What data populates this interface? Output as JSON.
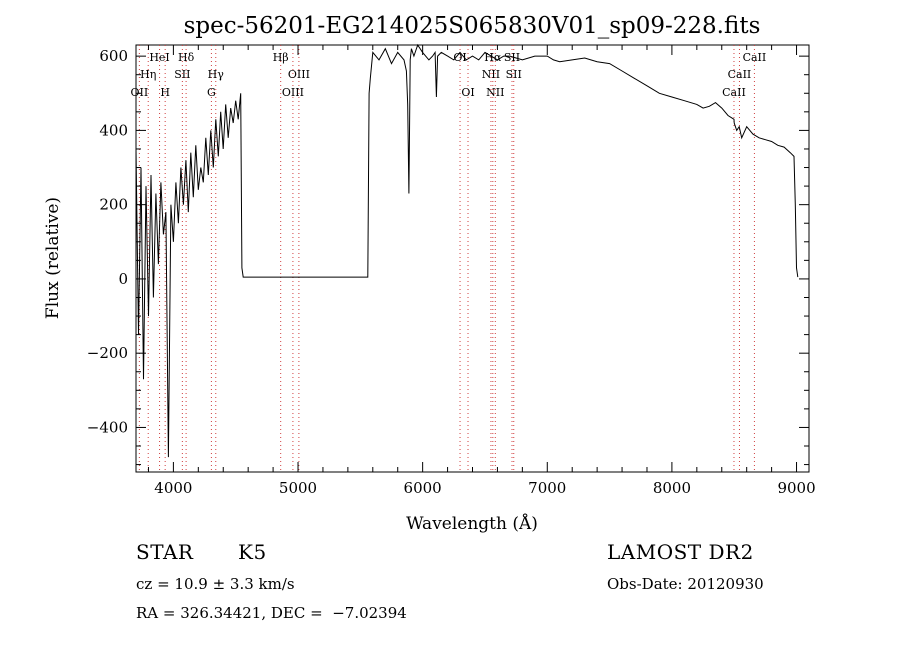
{
  "chart_data": {
    "type": "line",
    "title": "spec-56201-EG214025S065830V01_sp09-228.fits",
    "xlabel": "Wavelength (Å)",
    "ylabel": "Flux (relative)",
    "xlim": [
      3700,
      9100
    ],
    "ylim": [
      -520,
      630
    ],
    "x_ticks": [
      4000,
      5000,
      6000,
      7000,
      8000,
      9000
    ],
    "x_tick_labels": [
      "4000",
      "5000",
      "6000",
      "7000",
      "8000",
      "9000"
    ],
    "y_ticks": [
      -400,
      -200,
      0,
      200,
      400,
      600
    ],
    "y_tick_labels": [
      "−400",
      "−200",
      "0",
      "200",
      "400",
      "600"
    ],
    "grid": false,
    "series": [
      {
        "x": [
          3700,
          3720,
          3740,
          3760,
          3780,
          3800,
          3820,
          3840,
          3860,
          3880,
          3900,
          3920,
          3940,
          3960,
          3980,
          4000,
          4020,
          4040,
          4060,
          4080,
          4100,
          4120,
          4140,
          4160,
          4180,
          4200,
          4220,
          4240,
          4260,
          4280,
          4300,
          4320,
          4340,
          4360,
          4380,
          4400,
          4420,
          4440,
          4460,
          4480,
          4500,
          4520,
          4540,
          4550,
          4560,
          4580,
          4800,
          5000,
          5200,
          5400,
          5560,
          5570,
          5580,
          5600,
          5650,
          5700,
          5750,
          5800,
          5850,
          5870,
          5880,
          5890,
          5895,
          5900,
          5910,
          5930,
          5960,
          6000,
          6050,
          6080,
          6100,
          6110,
          6120,
          6150,
          6200,
          6250,
          6300,
          6350,
          6400,
          6450,
          6500,
          6550,
          6600,
          6650,
          6700,
          6750,
          6800,
          6900,
          7000,
          7050,
          7100,
          7200,
          7300,
          7400,
          7500,
          7600,
          7700,
          7800,
          7900,
          8000,
          8100,
          8200,
          8250,
          8300,
          8350,
          8400,
          8450,
          8498,
          8500,
          8520,
          8540,
          8560,
          8600,
          8650,
          8700,
          8750,
          8800,
          8850,
          8900,
          8950,
          8980,
          8990,
          9000,
          9010
        ],
        "y": [
          350,
          -150,
          300,
          -270,
          250,
          -100,
          280,
          -50,
          230,
          40,
          260,
          120,
          180,
          -480,
          200,
          100,
          260,
          150,
          300,
          200,
          320,
          180,
          340,
          220,
          360,
          240,
          300,
          260,
          380,
          280,
          400,
          300,
          430,
          330,
          450,
          350,
          470,
          380,
          460,
          420,
          480,
          430,
          500,
          30,
          5,
          5,
          5,
          5,
          5,
          5,
          5,
          500,
          540,
          610,
          590,
          620,
          580,
          610,
          590,
          560,
          470,
          230,
          420,
          590,
          620,
          600,
          630,
          610,
          590,
          600,
          610,
          490,
          600,
          610,
          600,
          590,
          610,
          590,
          600,
          590,
          610,
          600,
          590,
          600,
          600,
          595,
          590,
          600,
          600,
          590,
          585,
          590,
          595,
          585,
          580,
          560,
          540,
          520,
          500,
          490,
          480,
          470,
          460,
          465,
          475,
          460,
          440,
          430,
          420,
          400,
          410,
          380,
          410,
          390,
          380,
          375,
          370,
          360,
          355,
          340,
          330,
          200,
          30,
          5
        ]
      }
    ],
    "lines": [
      {
        "wavelength": 3727,
        "label": "OII",
        "row": 3
      },
      {
        "wavelength": 3798,
        "label": "Hη",
        "row": 2
      },
      {
        "wavelength": 3889,
        "label": "HeI",
        "row": 1
      },
      {
        "wavelength": 3934,
        "label": "H",
        "row": 3
      },
      {
        "wavelength": 4072,
        "label": "SII",
        "row": 2
      },
      {
        "wavelength": 4102,
        "label": "Hδ",
        "row": 1
      },
      {
        "wavelength": 4305,
        "label": "G",
        "row": 3
      },
      {
        "wavelength": 4340,
        "label": "Hγ",
        "row": 2
      },
      {
        "wavelength": 4861,
        "label": "Hβ",
        "row": 1
      },
      {
        "wavelength": 4959,
        "label": "OIII",
        "row": 3
      },
      {
        "wavelength": 5007,
        "label": "OIII",
        "row": 2
      },
      {
        "wavelength": 6300,
        "label": "OI",
        "row": 1
      },
      {
        "wavelength": 6364,
        "label": "OI",
        "row": 3
      },
      {
        "wavelength": 6548,
        "label": "NII",
        "row": 2
      },
      {
        "wavelength": 6563,
        "label": "Hα",
        "row": 1
      },
      {
        "wavelength": 6583,
        "label": "NII",
        "row": 3
      },
      {
        "wavelength": 6717,
        "label": "SII",
        "row": 1
      },
      {
        "wavelength": 6731,
        "label": "SII",
        "row": 2
      },
      {
        "wavelength": 8498,
        "label": "CaII",
        "row": 3
      },
      {
        "wavelength": 8542,
        "label": "CaII",
        "row": 2
      },
      {
        "wavelength": 8662,
        "label": "CaII",
        "row": 1
      }
    ]
  },
  "info": {
    "class": "STAR",
    "subclass": "K5",
    "survey": "LAMOST DR2",
    "cz": "cz = 10.9 ± 3.3 km/s",
    "obs_date": "Obs-Date: 20120930",
    "coords": "RA = 326.34421, DEC =  −7.02394"
  }
}
